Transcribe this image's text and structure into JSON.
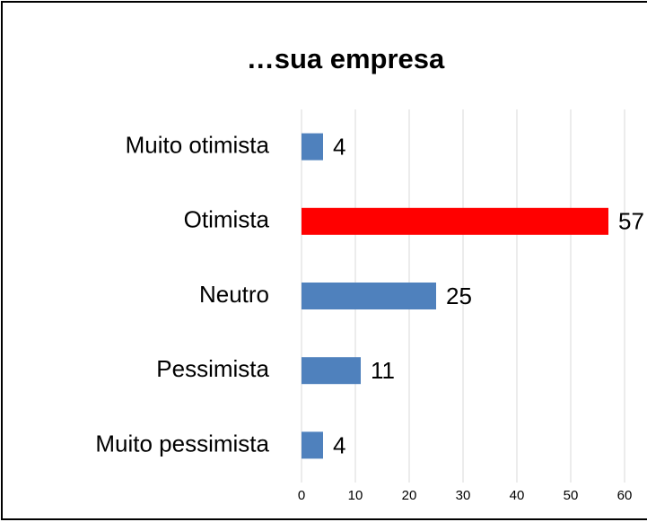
{
  "chart_data": {
    "type": "bar",
    "orientation": "horizontal",
    "title": "…sua empresa",
    "categories": [
      "Muito otimista",
      "Otimista",
      "Neutro",
      "Pessimista",
      "Muito pessimista"
    ],
    "values": [
      4,
      57,
      25,
      11,
      4
    ],
    "colors": [
      "#4f81bd",
      "#ff0000",
      "#4f81bd",
      "#4f81bd",
      "#4f81bd"
    ],
    "xlim": [
      0,
      60
    ],
    "xticks": [
      0,
      10,
      20,
      30,
      40,
      50,
      60
    ],
    "grid": true
  }
}
